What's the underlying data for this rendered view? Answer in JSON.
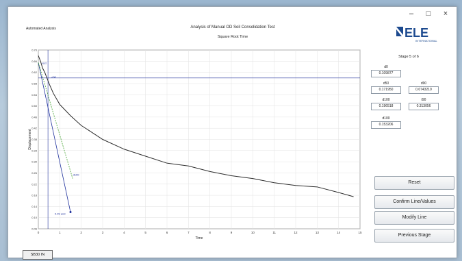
{
  "window": {
    "controls": {
      "minimize": "–",
      "maximize": "□",
      "close": "×"
    }
  },
  "header": {
    "automated_label": "Automated Analysis",
    "title": "Analysis of Manual OD Soil Consolidation Test",
    "subtitle": "Square Root Time"
  },
  "logo": {
    "main": "ELE",
    "sub": "INTERNATIONAL",
    "color": "#1d4a8f"
  },
  "side_panel": {
    "stage": "Stage 5 of 6",
    "params": [
      {
        "label": "d0",
        "value": "0.109877"
      },
      {
        "label": "d50",
        "value": "0.171950"
      },
      {
        "label": "d90",
        "value": "0.0743210"
      },
      {
        "label": "d100",
        "value": "0.196518"
      },
      {
        "label": "t90",
        "value": "0.313056"
      },
      {
        "label": "d100",
        "value": "0.153206"
      }
    ]
  },
  "buttons": {
    "reset": "Reset",
    "confirm": "Confirm Line/Values",
    "modify": "Modify Line",
    "previous": "Previous Stage"
  },
  "status_tag": "SB30 IN",
  "chart_data": {
    "type": "line",
    "title": "",
    "xlabel": "Time",
    "ylabel": "Displacement",
    "xlim": [
      0,
      15
    ],
    "ylim": [
      0.06,
      0.7
    ],
    "x_ticks": [
      0,
      1,
      2,
      3,
      4,
      5,
      6,
      7,
      8,
      9,
      10,
      11,
      12,
      13,
      14,
      15
    ],
    "y_ticks": [
      0.06,
      0.1,
      0.14,
      0.18,
      0.22,
      0.26,
      0.3,
      0.34,
      0.38,
      0.42,
      0.46,
      0.5,
      0.54,
      0.58,
      0.62,
      0.66,
      0.7
    ],
    "y_tick_labels": [
      "0.06",
      "0.10",
      "0.14",
      "0.18",
      "0.22",
      "0.26",
      "0.30",
      "0.34",
      "0.38",
      "0.42",
      "0.46",
      "0.50",
      "0.54",
      "0.58",
      "0.62",
      "0.66",
      "0.70"
    ],
    "series": [
      {
        "name": "Curve",
        "color": "#2b2b2b",
        "x": [
          0,
          0.1,
          0.2,
          0.3,
          0.5,
          0.7,
          1.0,
          1.5,
          2.0,
          2.5,
          3.0,
          4.0,
          5.0,
          6.0,
          7.0,
          8.0,
          9.0,
          10.0,
          11.0,
          12.0,
          13.0,
          14.0,
          14.7
        ],
        "y": [
          0.68,
          0.66,
          0.635,
          0.62,
          0.58,
          0.545,
          0.505,
          0.465,
          0.43,
          0.405,
          0.38,
          0.345,
          0.32,
          0.295,
          0.285,
          0.265,
          0.25,
          0.24,
          0.225,
          0.215,
          0.21,
          0.19,
          0.175
        ]
      },
      {
        "name": "Fit line",
        "color": "#1c2e9b",
        "x": [
          0,
          1.5
        ],
        "y": [
          0.655,
          0.12
        ]
      },
      {
        "name": "1.15x line",
        "color": "#3fa12b",
        "dashed": true,
        "x": [
          0,
          1.6
        ],
        "y": [
          0.655,
          0.24
        ]
      }
    ],
    "horizontal_line": {
      "y": 0.6,
      "color": "#1c2e9b"
    },
    "vertical_line": {
      "x": 0.45,
      "color": "#1c2e9b"
    },
    "annotations": [
      {
        "text": "rect",
        "x": 0.1,
        "y": 0.65
      },
      {
        "text": "d90",
        "x": 0.55,
        "y": 0.6
      },
      {
        "text": "d100",
        "x": 1.55,
        "y": 0.25
      },
      {
        "text": "0.09 end",
        "x": 0.7,
        "y": 0.11
      }
    ]
  }
}
